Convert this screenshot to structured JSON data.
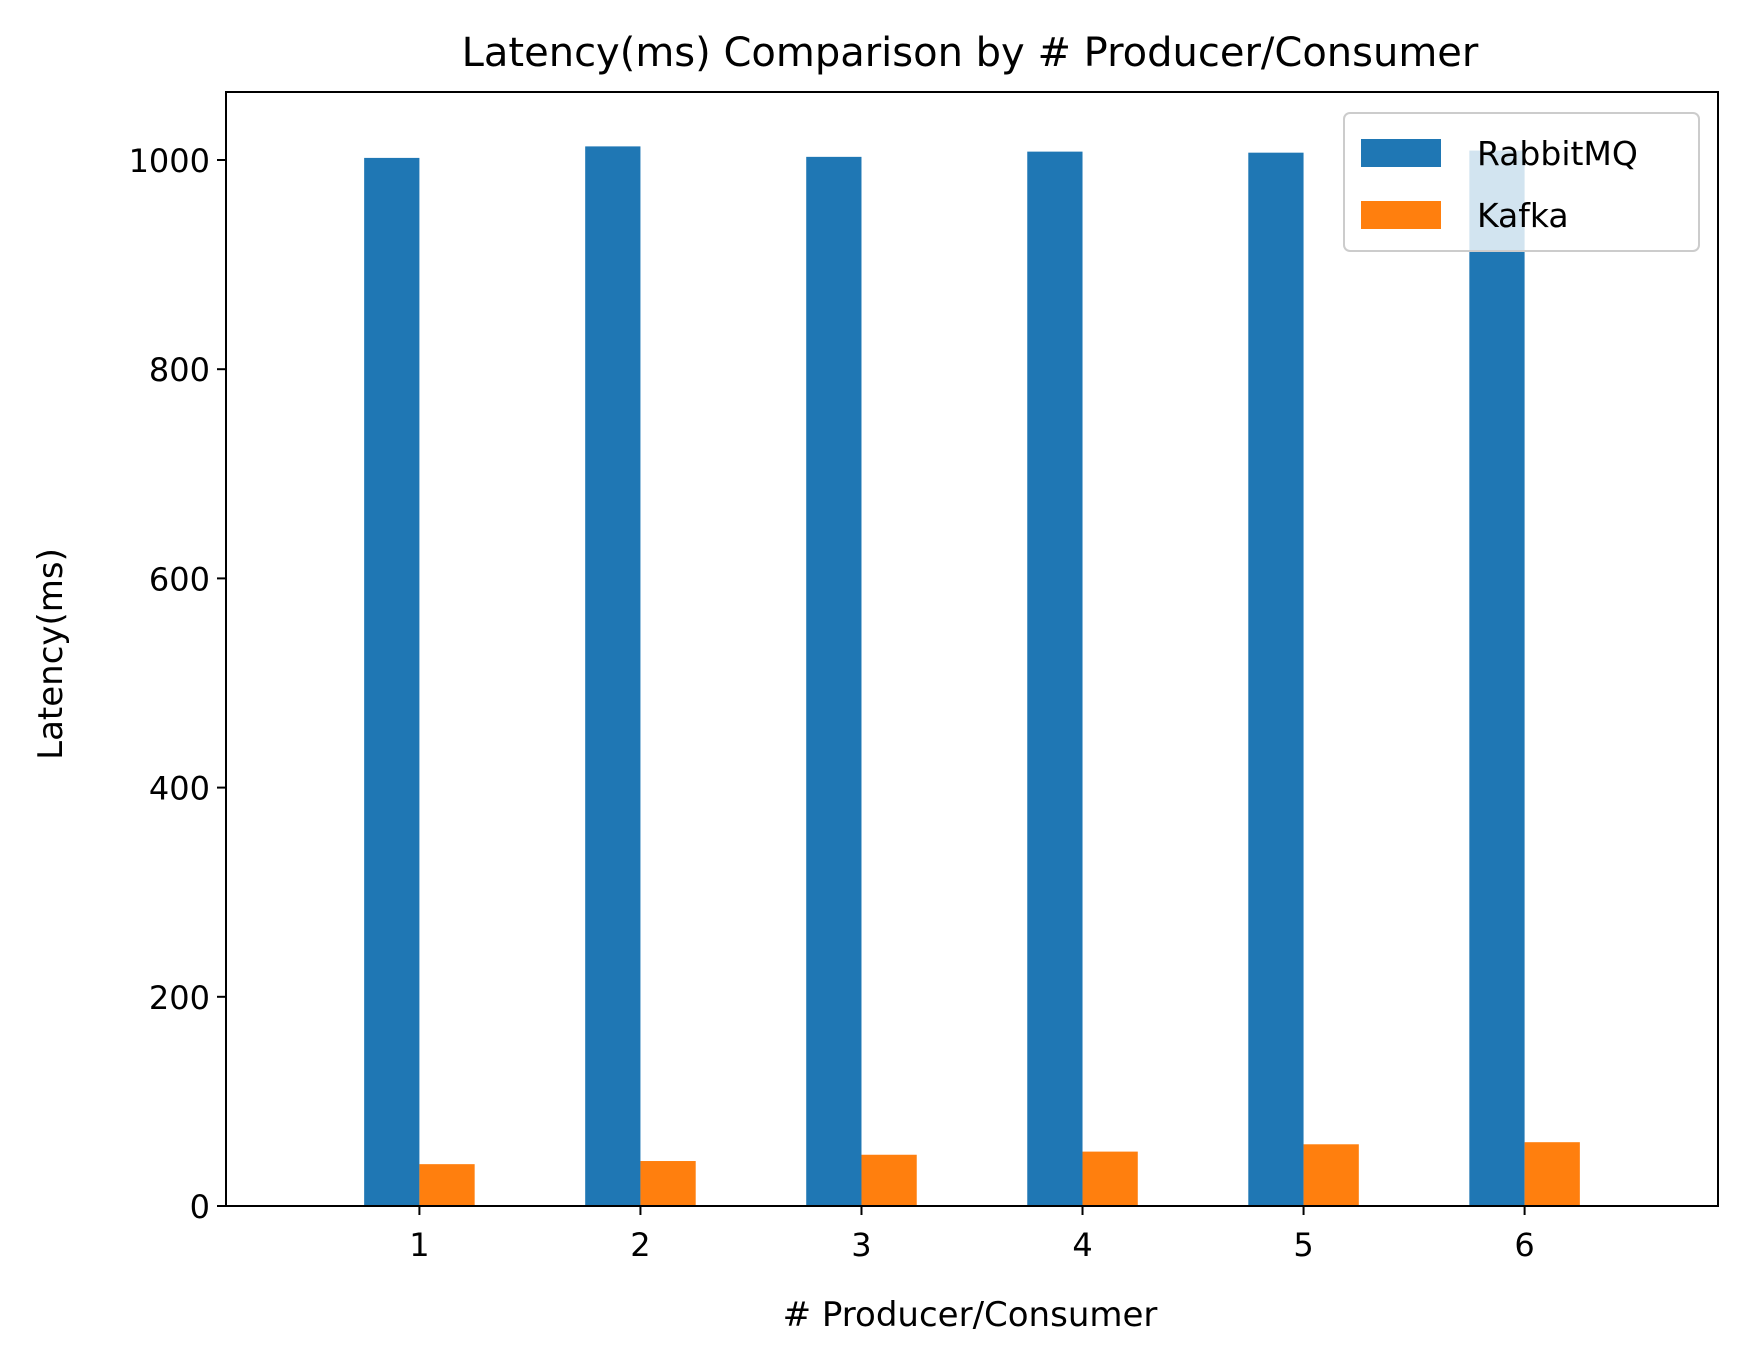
{
  "chart_data": {
    "type": "bar",
    "title": "Latency(ms) Comparison by # Producer/Consumer",
    "xlabel": "# Producer/Consumer",
    "ylabel": "Latency(ms)",
    "categories": [
      "1",
      "2",
      "3",
      "4",
      "5",
      "6"
    ],
    "series": [
      {
        "name": "RabbitMQ",
        "color": "#1f77b4",
        "values": [
          1002,
          1013,
          1003,
          1008,
          1007,
          1009
        ]
      },
      {
        "name": "Kafka",
        "color": "#ff7f0e",
        "values": [
          40,
          43,
          49,
          52,
          59,
          61
        ]
      }
    ],
    "ylim": [
      0,
      1065
    ],
    "yticks": [
      0,
      200,
      400,
      600,
      800,
      1000
    ],
    "grid": false,
    "legend": "top-right"
  }
}
